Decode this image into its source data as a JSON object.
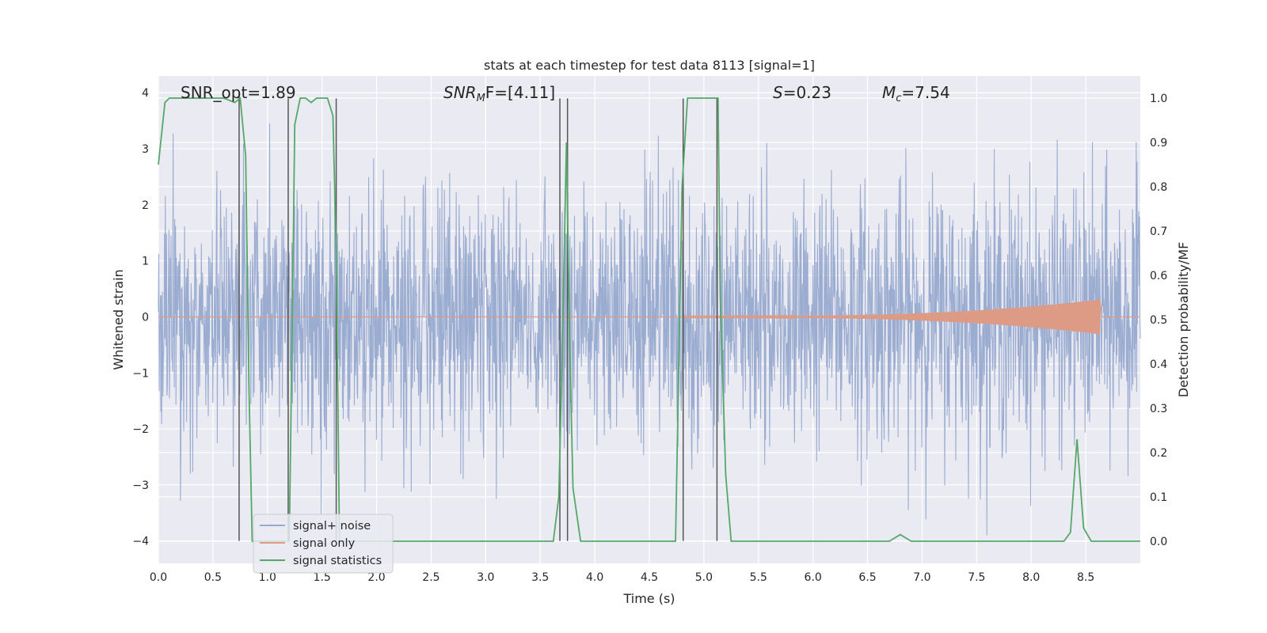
{
  "chart_data": {
    "type": "line",
    "title": "stats at each timestep for test data 8113 [signal=1]",
    "xlabel": "Time (s)",
    "ylabel_left": "Whitened strain",
    "ylabel_right": "Detection probability/MF",
    "xlim": [
      0.0,
      9.0
    ],
    "ylim_left": [
      -4.4,
      4.3
    ],
    "ylim_right": [
      -0.05,
      1.05
    ],
    "xticks": [
      0.0,
      0.5,
      1.0,
      1.5,
      2.0,
      2.5,
      3.0,
      3.5,
      4.0,
      4.5,
      5.0,
      5.5,
      6.0,
      6.5,
      7.0,
      7.5,
      8.0,
      8.5
    ],
    "xtick_labels": [
      "0.0",
      "0.5",
      "1.0",
      "1.5",
      "2.0",
      "2.5",
      "3.0",
      "3.5",
      "4.0",
      "4.5",
      "5.0",
      "5.5",
      "6.0",
      "6.5",
      "7.0",
      "7.5",
      "8.0",
      "8.5"
    ],
    "yticks_left": [
      -4,
      -3,
      -2,
      -1,
      0,
      1,
      2,
      3,
      4
    ],
    "ytick_labels_left": [
      "−4",
      "−3",
      "−2",
      "−1",
      "0",
      "1",
      "2",
      "3",
      "4"
    ],
    "yticks_right": [
      0.0,
      0.1,
      0.2,
      0.3,
      0.4,
      0.5,
      0.6,
      0.7,
      0.8,
      0.9,
      1.0
    ],
    "ytick_labels_right": [
      "0.0",
      "0.1",
      "0.2",
      "0.3",
      "0.4",
      "0.5",
      "0.6",
      "0.7",
      "0.8",
      "0.9",
      "1.0"
    ],
    "grid": true,
    "legend_position": "lower-left",
    "annotations": {
      "snr_opt": "SNR_opt=1.89",
      "snr_mf_main": "SNR",
      "snr_mf_sub": "M",
      "snr_mf_rest": "F=[4.11]",
      "s_main": "S",
      "s_rest": "=0.23",
      "mc_main": "M",
      "mc_sub": "c",
      "mc_rest": "=7.54"
    },
    "series": [
      {
        "name": "signal+ noise",
        "color": "#97a9cf",
        "axis": "left",
        "description_range": [
          -3.9,
          3.9
        ],
        "sample_rate_hz": 2048
      },
      {
        "name": "signal only",
        "color": "#dd9b86",
        "axis": "left",
        "envelope_start_x": 4.8,
        "envelope_end_x": 8.63,
        "envelope_max_amplitude": 0.3
      },
      {
        "name": "signal statistics",
        "color": "#55a868",
        "axis": "right",
        "x": [
          0.0,
          0.06,
          0.1,
          0.2,
          0.3,
          0.4,
          0.5,
          0.6,
          0.7,
          0.75,
          0.8,
          0.83,
          0.86,
          0.9,
          1.0,
          1.1,
          1.2,
          1.23,
          1.25,
          1.3,
          1.35,
          1.4,
          1.45,
          1.5,
          1.55,
          1.6,
          1.63,
          1.66,
          1.7,
          1.8,
          2.0,
          2.5,
          3.0,
          3.5,
          3.62,
          3.67,
          3.7,
          3.74,
          3.77,
          3.8,
          3.87,
          4.0,
          4.5,
          4.74,
          4.8,
          4.85,
          4.9,
          5.0,
          5.1,
          5.13,
          5.15,
          5.2,
          5.25,
          5.5,
          6.0,
          6.5,
          6.7,
          6.8,
          6.9,
          7.0,
          7.5,
          8.0,
          8.3,
          8.36,
          8.42,
          8.48,
          8.55,
          9.0
        ],
        "values": [
          0.85,
          0.99,
          1.0,
          1.0,
          1.0,
          1.0,
          1.0,
          1.0,
          0.99,
          1.0,
          0.87,
          0.35,
          0.0,
          0.0,
          0.0,
          0.0,
          0.0,
          0.55,
          0.94,
          1.0,
          1.0,
          0.99,
          1.0,
          1.0,
          1.0,
          0.96,
          0.65,
          0.0,
          0.0,
          0.0,
          0.0,
          0.0,
          0.0,
          0.0,
          0.0,
          0.1,
          0.4,
          0.9,
          0.45,
          0.12,
          0.0,
          0.0,
          0.0,
          0.0,
          0.8,
          1.0,
          1.0,
          1.0,
          1.0,
          1.0,
          0.55,
          0.15,
          0.0,
          0.0,
          0.0,
          0.0,
          0.0,
          0.015,
          0.0,
          0.0,
          0.0,
          0.0,
          0.0,
          0.02,
          0.23,
          0.03,
          0.0,
          0.0
        ]
      }
    ],
    "vertical_markers": [
      {
        "x": 0.74,
        "y_top": 4.0
      },
      {
        "x": 1.19,
        "y_top": 3.9
      },
      {
        "x": 1.63,
        "y_top": 3.9
      },
      {
        "x": 3.68,
        "y_top": 3.9
      },
      {
        "x": 3.75,
        "y_top": 3.9
      },
      {
        "x": 4.81,
        "y_top": 3.9
      },
      {
        "x": 5.12,
        "y_top": 3.9
      }
    ],
    "marker_bottom_y": -4.0
  }
}
